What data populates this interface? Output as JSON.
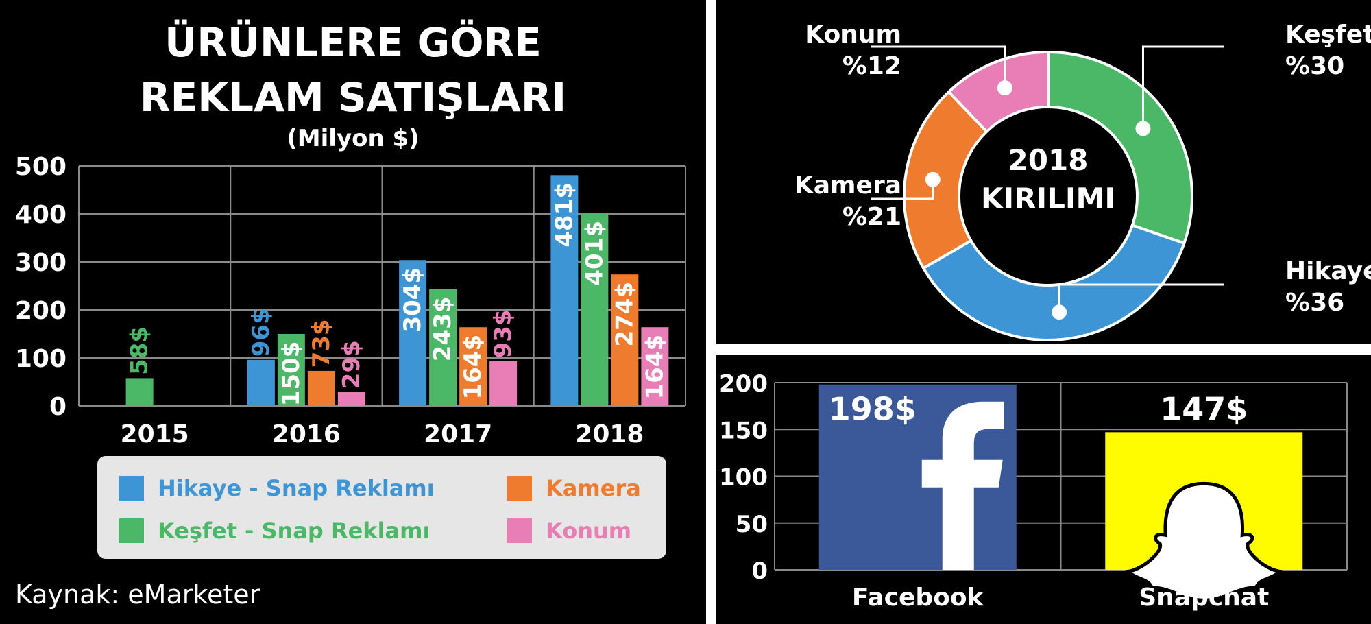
{
  "colors": {
    "hikaye": "#3d95d6",
    "kesfet": "#4ab866",
    "kamera": "#ee7b2e",
    "konum": "#e87eb5",
    "facebook": "#3b5998",
    "snapchat": "#fffc00"
  },
  "left": {
    "title_line1": "ÜRÜNLERE GÖRE",
    "title_line2": "REKLAM SATIŞLARI",
    "subtitle": "(Milyon $)",
    "legend": [
      {
        "label": "Hikaye - Snap Reklamı",
        "color": "#3d95d6"
      },
      {
        "label": "Keşfet - Snap Reklamı",
        "color": "#4ab866"
      },
      {
        "label": "Kamera",
        "color": "#ee7b2e"
      },
      {
        "label": "Konum",
        "color": "#e87eb5"
      }
    ],
    "source": "Kaynak: eMarketer"
  },
  "donut_center": {
    "line1": "2018",
    "line2": "KIRILIMI"
  },
  "chart_data": [
    {
      "type": "bar",
      "title": "ÜRÜNLERE GÖRE REKLAM SATIŞLARI",
      "subtitle": "(Milyon $)",
      "categories": [
        "2015",
        "2016",
        "2017",
        "2018"
      ],
      "ylim": [
        0,
        500
      ],
      "yticks": [
        0,
        100,
        200,
        300,
        400,
        500
      ],
      "grid": true,
      "series": [
        {
          "name": "Hikaye - Snap Reklamı",
          "color": "#3d95d6",
          "values": [
            null,
            96,
            304,
            481
          ],
          "labels": [
            "",
            "96$",
            "304$",
            "481$"
          ]
        },
        {
          "name": "Keşfet - Snap Reklamı",
          "color": "#4ab866",
          "values": [
            58,
            150,
            243,
            401
          ],
          "labels": [
            "58$",
            "150$",
            "243$",
            "401$"
          ]
        },
        {
          "name": "Kamera",
          "color": "#ee7b2e",
          "values": [
            null,
            73,
            164,
            274
          ],
          "labels": [
            "",
            "73$",
            "164$",
            "274$"
          ]
        },
        {
          "name": "Konum",
          "color": "#e87eb5",
          "values": [
            null,
            29,
            93,
            164
          ],
          "labels": [
            "",
            "29$",
            "93$",
            "164$"
          ]
        }
      ]
    },
    {
      "type": "pie",
      "title": "2018 KIRILIMI",
      "slices": [
        {
          "name": "Keşfet",
          "value": 30,
          "label": "%30",
          "color": "#4ab866"
        },
        {
          "name": "Hikaye",
          "value": 36,
          "label": "%36",
          "color": "#3d95d6"
        },
        {
          "name": "Kamera",
          "value": 21,
          "label": "%21",
          "color": "#ee7b2e"
        },
        {
          "name": "Konum",
          "value": 12,
          "label": "%12",
          "color": "#e87eb5"
        }
      ]
    },
    {
      "type": "bar",
      "categories": [
        "Facebook",
        "Snapchat"
      ],
      "values": [
        198,
        147
      ],
      "labels": [
        "198$",
        "147$"
      ],
      "ylim": [
        0,
        200
      ],
      "yticks": [
        0,
        50,
        100,
        150,
        200
      ],
      "grid": true,
      "icons": [
        "facebook-logo",
        "snapchat-ghost-logo"
      ]
    }
  ]
}
